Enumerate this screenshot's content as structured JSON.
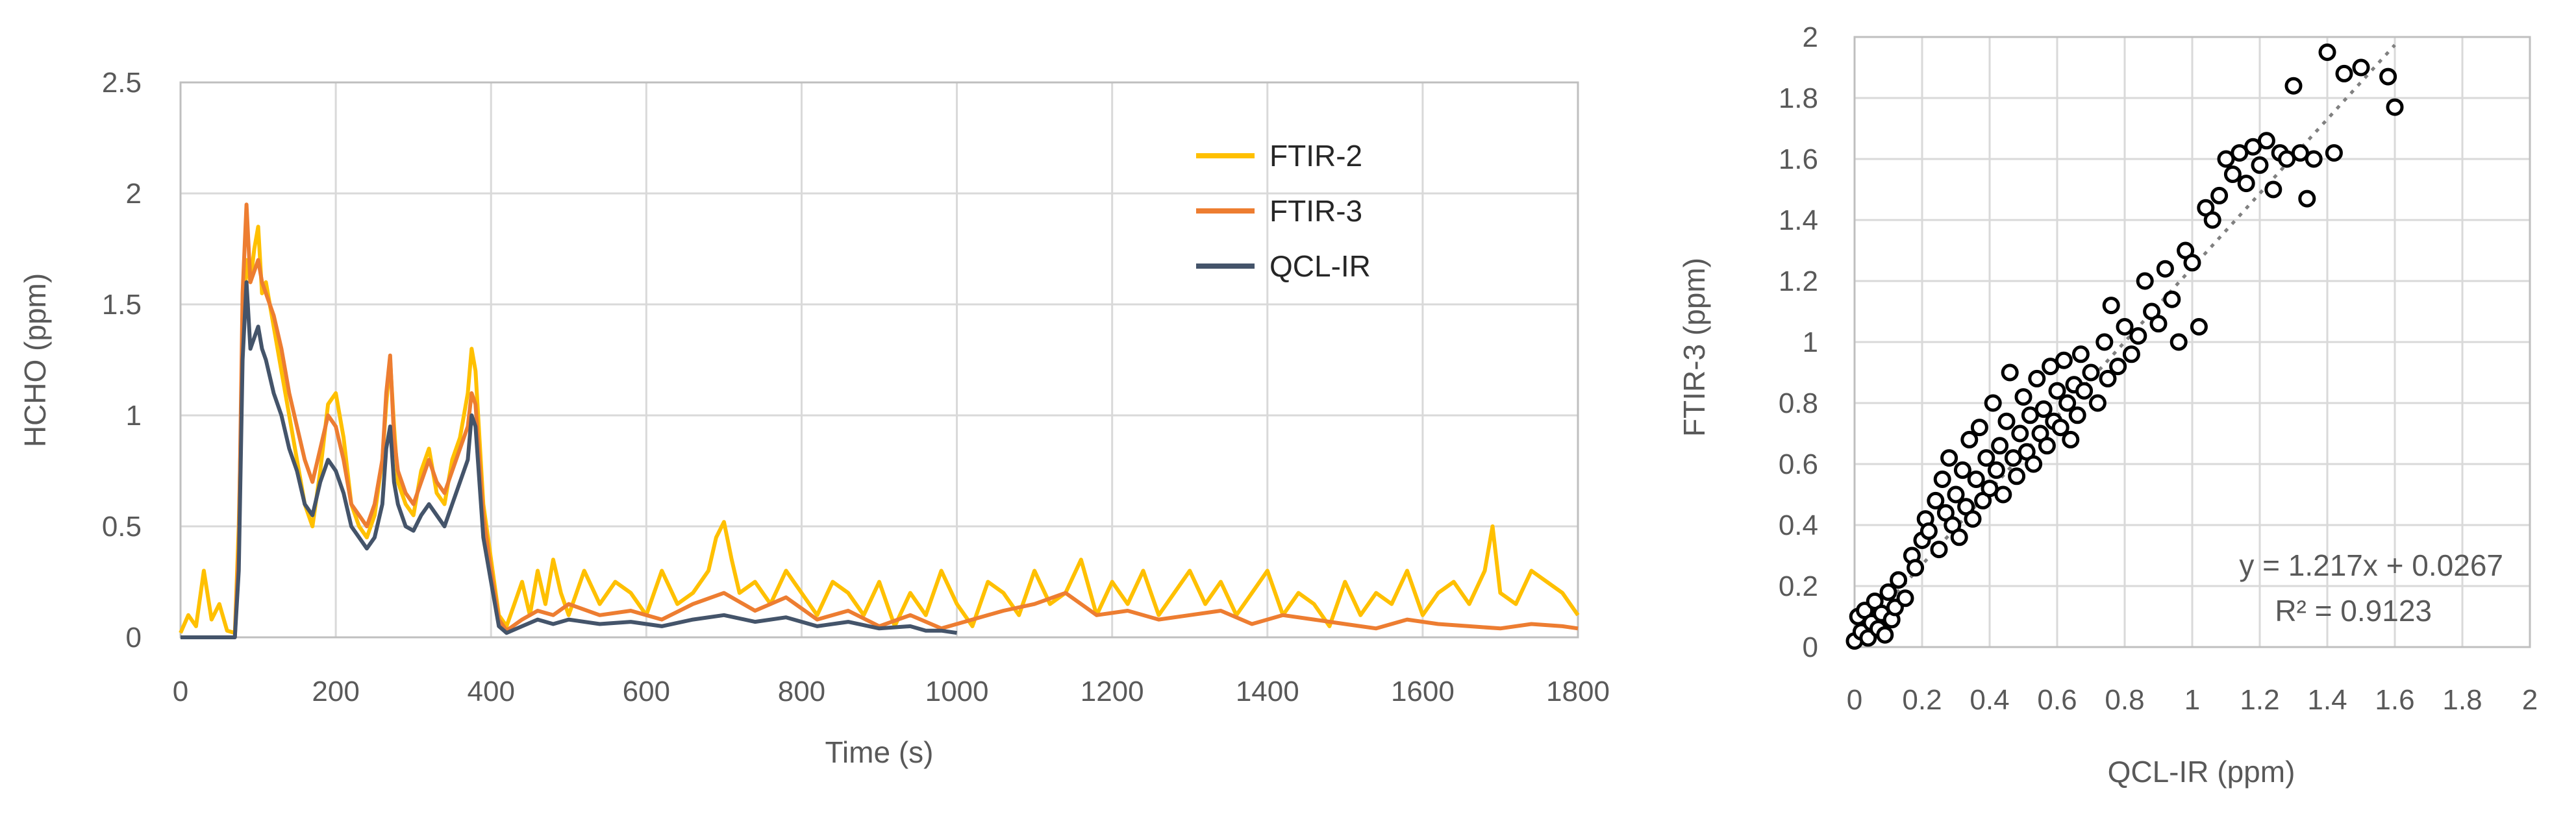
{
  "chart_data": [
    {
      "type": "line",
      "title": "",
      "xlabel": "Time (s)",
      "ylabel": "HCHO (ppm)",
      "xlim": [
        0,
        1800
      ],
      "ylim": [
        0,
        2.5
      ],
      "xticks": [
        0,
        200,
        400,
        600,
        800,
        1000,
        1200,
        1400,
        1600,
        1800
      ],
      "yticks": [
        0,
        0.5,
        1,
        1.5,
        2,
        2.5
      ],
      "ytick_labels": [
        "0",
        "0.5",
        "1",
        "1.5",
        "2",
        "2.5"
      ],
      "grid": true,
      "legend": "top-right",
      "series": [
        {
          "name": "FTIR-2",
          "color": "#FFC000",
          "x": [
            0,
            10,
            20,
            30,
            40,
            50,
            60,
            70,
            75,
            80,
            85,
            90,
            95,
            100,
            105,
            110,
            120,
            130,
            140,
            150,
            160,
            170,
            180,
            190,
            200,
            210,
            220,
            230,
            240,
            250,
            260,
            265,
            270,
            275,
            280,
            290,
            300,
            310,
            320,
            330,
            340,
            350,
            360,
            370,
            375,
            380,
            385,
            390,
            400,
            410,
            420,
            430,
            440,
            450,
            460,
            470,
            480,
            490,
            500,
            520,
            540,
            560,
            580,
            600,
            620,
            640,
            660,
            680,
            690,
            700,
            710,
            720,
            740,
            760,
            780,
            800,
            820,
            840,
            860,
            880,
            900,
            920,
            940,
            960,
            980,
            1000,
            1020,
            1040,
            1060,
            1080,
            1100,
            1120,
            1140,
            1160,
            1180,
            1200,
            1220,
            1240,
            1260,
            1280,
            1300,
            1320,
            1340,
            1360,
            1380,
            1400,
            1420,
            1440,
            1460,
            1480,
            1500,
            1520,
            1540,
            1560,
            1580,
            1600,
            1620,
            1640,
            1660,
            1680,
            1690,
            1700,
            1720,
            1740,
            1760,
            1780,
            1800
          ],
          "values": [
            0.02,
            0.1,
            0.05,
            0.3,
            0.08,
            0.15,
            0.03,
            0.02,
            0.5,
            1.3,
            1.7,
            1.6,
            1.75,
            1.85,
            1.55,
            1.6,
            1.4,
            1.2,
            1.0,
            0.8,
            0.6,
            0.5,
            0.75,
            1.05,
            1.1,
            0.9,
            0.6,
            0.5,
            0.45,
            0.55,
            0.8,
            1.05,
            1.25,
            0.95,
            0.7,
            0.6,
            0.55,
            0.75,
            0.85,
            0.65,
            0.6,
            0.8,
            0.9,
            1.1,
            1.3,
            1.2,
            0.9,
            0.6,
            0.35,
            0.1,
            0.05,
            0.15,
            0.25,
            0.1,
            0.3,
            0.15,
            0.35,
            0.2,
            0.1,
            0.3,
            0.15,
            0.25,
            0.2,
            0.1,
            0.3,
            0.15,
            0.2,
            0.3,
            0.45,
            0.52,
            0.35,
            0.2,
            0.25,
            0.15,
            0.3,
            0.2,
            0.1,
            0.25,
            0.2,
            0.1,
            0.25,
            0.05,
            0.2,
            0.1,
            0.3,
            0.15,
            0.05,
            0.25,
            0.2,
            0.1,
            0.3,
            0.15,
            0.2,
            0.35,
            0.1,
            0.25,
            0.15,
            0.3,
            0.1,
            0.2,
            0.3,
            0.15,
            0.25,
            0.1,
            0.2,
            0.3,
            0.1,
            0.2,
            0.15,
            0.05,
            0.25,
            0.1,
            0.2,
            0.15,
            0.3,
            0.1,
            0.2,
            0.25,
            0.15,
            0.3,
            0.5,
            0.2,
            0.15,
            0.3,
            0.25,
            0.2,
            0.1
          ]
        },
        {
          "name": "FTIR-3",
          "color": "#ED7D31",
          "x": [
            0,
            20,
            40,
            60,
            70,
            75,
            80,
            85,
            90,
            95,
            100,
            105,
            110,
            120,
            130,
            140,
            150,
            160,
            170,
            180,
            190,
            200,
            210,
            220,
            230,
            240,
            250,
            260,
            265,
            270,
            275,
            280,
            290,
            300,
            310,
            320,
            330,
            340,
            350,
            360,
            370,
            375,
            380,
            385,
            390,
            400,
            410,
            420,
            440,
            460,
            480,
            500,
            540,
            580,
            620,
            660,
            700,
            740,
            780,
            820,
            860,
            900,
            940,
            980,
            1020,
            1060,
            1100,
            1140,
            1180,
            1220,
            1260,
            1300,
            1340,
            1380,
            1420,
            1460,
            1500,
            1540,
            1580,
            1620,
            1660,
            1700,
            1740,
            1780,
            1800
          ],
          "values": [
            0,
            0,
            0,
            0,
            0,
            0.4,
            1.55,
            1.95,
            1.6,
            1.65,
            1.7,
            1.6,
            1.55,
            1.45,
            1.3,
            1.1,
            0.95,
            0.8,
            0.7,
            0.85,
            1.0,
            0.95,
            0.8,
            0.6,
            0.55,
            0.5,
            0.6,
            0.8,
            1.1,
            1.27,
            0.9,
            0.75,
            0.65,
            0.6,
            0.7,
            0.8,
            0.7,
            0.65,
            0.75,
            0.85,
            0.95,
            1.1,
            1.05,
            0.8,
            0.55,
            0.3,
            0.08,
            0.03,
            0.08,
            0.12,
            0.1,
            0.15,
            0.1,
            0.12,
            0.08,
            0.15,
            0.2,
            0.12,
            0.18,
            0.08,
            0.12,
            0.05,
            0.1,
            0.04,
            0.08,
            0.12,
            0.15,
            0.2,
            0.1,
            0.12,
            0.08,
            0.1,
            0.12,
            0.06,
            0.1,
            0.08,
            0.06,
            0.04,
            0.08,
            0.06,
            0.05,
            0.04,
            0.06,
            0.05,
            0.04
          ]
        },
        {
          "name": "QCL-IR",
          "color": "#44546A",
          "x": [
            0,
            20,
            40,
            60,
            70,
            75,
            80,
            85,
            90,
            95,
            100,
            105,
            110,
            120,
            130,
            140,
            150,
            160,
            170,
            180,
            190,
            200,
            210,
            220,
            230,
            240,
            250,
            260,
            265,
            270,
            275,
            280,
            290,
            300,
            310,
            320,
            330,
            340,
            350,
            360,
            370,
            375,
            380,
            385,
            390,
            400,
            410,
            420,
            440,
            460,
            480,
            500,
            540,
            580,
            620,
            660,
            700,
            740,
            780,
            820,
            860,
            900,
            940,
            960,
            980,
            1000
          ],
          "values": [
            0,
            0,
            0,
            0,
            0,
            0.3,
            1.25,
            1.6,
            1.3,
            1.35,
            1.4,
            1.3,
            1.25,
            1.1,
            1.0,
            0.85,
            0.75,
            0.6,
            0.55,
            0.7,
            0.8,
            0.75,
            0.65,
            0.5,
            0.45,
            0.4,
            0.45,
            0.6,
            0.85,
            0.95,
            0.7,
            0.6,
            0.5,
            0.48,
            0.55,
            0.6,
            0.55,
            0.5,
            0.6,
            0.7,
            0.8,
            1.0,
            0.95,
            0.7,
            0.45,
            0.25,
            0.05,
            0.02,
            0.05,
            0.08,
            0.06,
            0.08,
            0.06,
            0.07,
            0.05,
            0.08,
            0.1,
            0.07,
            0.09,
            0.05,
            0.07,
            0.04,
            0.05,
            0.03,
            0.03,
            0.02
          ]
        }
      ]
    },
    {
      "type": "scatter",
      "title": "",
      "xlabel": "QCL-IR (ppm)",
      "ylabel": "FTIR-3 (ppm)",
      "xlim": [
        0,
        2
      ],
      "ylim": [
        0,
        2
      ],
      "xticks": [
        0,
        0.2,
        0.4,
        0.6,
        0.8,
        1,
        1.2,
        1.4,
        1.6,
        1.8,
        2
      ],
      "xtick_labels": [
        "0",
        "0.2",
        "0.4",
        "0.6",
        "0.8",
        "1",
        "1.2",
        "1.4",
        "1.6",
        "1.8",
        "2"
      ],
      "yticks": [
        0,
        0.2,
        0.4,
        0.6,
        0.8,
        1,
        1.2,
        1.4,
        1.6,
        1.8,
        2
      ],
      "ytick_labels": [
        "0",
        "0.2",
        "0.4",
        "0.6",
        "0.8",
        "1",
        "1.2",
        "1.4",
        "1.6",
        "1.8",
        "2"
      ],
      "grid": true,
      "trendline": {
        "slope": 1.217,
        "intercept": 0.0267,
        "equation": "y = 1.217x + 0.0267",
        "r2_label": "R² = 0.9123"
      },
      "points": [
        [
          0.0,
          0.02
        ],
        [
          0.01,
          0.1
        ],
        [
          0.02,
          0.05
        ],
        [
          0.03,
          0.12
        ],
        [
          0.04,
          0.03
        ],
        [
          0.05,
          0.08
        ],
        [
          0.06,
          0.15
        ],
        [
          0.07,
          0.06
        ],
        [
          0.08,
          0.11
        ],
        [
          0.09,
          0.04
        ],
        [
          0.1,
          0.18
        ],
        [
          0.11,
          0.09
        ],
        [
          0.12,
          0.13
        ],
        [
          0.13,
          0.22
        ],
        [
          0.15,
          0.16
        ],
        [
          0.17,
          0.3
        ],
        [
          0.18,
          0.26
        ],
        [
          0.2,
          0.35
        ],
        [
          0.21,
          0.42
        ],
        [
          0.22,
          0.38
        ],
        [
          0.24,
          0.48
        ],
        [
          0.25,
          0.32
        ],
        [
          0.26,
          0.55
        ],
        [
          0.27,
          0.44
        ],
        [
          0.28,
          0.62
        ],
        [
          0.29,
          0.4
        ],
        [
          0.3,
          0.5
        ],
        [
          0.31,
          0.36
        ],
        [
          0.32,
          0.58
        ],
        [
          0.33,
          0.46
        ],
        [
          0.34,
          0.68
        ],
        [
          0.35,
          0.42
        ],
        [
          0.36,
          0.55
        ],
        [
          0.37,
          0.72
        ],
        [
          0.38,
          0.48
        ],
        [
          0.39,
          0.62
        ],
        [
          0.4,
          0.52
        ],
        [
          0.41,
          0.8
        ],
        [
          0.42,
          0.58
        ],
        [
          0.43,
          0.66
        ],
        [
          0.44,
          0.5
        ],
        [
          0.45,
          0.74
        ],
        [
          0.46,
          0.9
        ],
        [
          0.47,
          0.62
        ],
        [
          0.48,
          0.56
        ],
        [
          0.49,
          0.7
        ],
        [
          0.5,
          0.82
        ],
        [
          0.51,
          0.64
        ],
        [
          0.52,
          0.76
        ],
        [
          0.53,
          0.6
        ],
        [
          0.54,
          0.88
        ],
        [
          0.55,
          0.7
        ],
        [
          0.56,
          0.78
        ],
        [
          0.57,
          0.66
        ],
        [
          0.58,
          0.92
        ],
        [
          0.59,
          0.74
        ],
        [
          0.6,
          0.84
        ],
        [
          0.61,
          0.72
        ],
        [
          0.62,
          0.94
        ],
        [
          0.63,
          0.8
        ],
        [
          0.64,
          0.68
        ],
        [
          0.65,
          0.86
        ],
        [
          0.66,
          0.76
        ],
        [
          0.67,
          0.96
        ],
        [
          0.68,
          0.84
        ],
        [
          0.7,
          0.9
        ],
        [
          0.72,
          0.8
        ],
        [
          0.74,
          1.0
        ],
        [
          0.75,
          0.88
        ],
        [
          0.76,
          1.12
        ],
        [
          0.78,
          0.92
        ],
        [
          0.8,
          1.05
        ],
        [
          0.82,
          0.96
        ],
        [
          0.84,
          1.02
        ],
        [
          0.86,
          1.2
        ],
        [
          0.88,
          1.1
        ],
        [
          0.9,
          1.06
        ],
        [
          0.92,
          1.24
        ],
        [
          0.94,
          1.14
        ],
        [
          0.96,
          1.0
        ],
        [
          0.98,
          1.3
        ],
        [
          1.0,
          1.26
        ],
        [
          1.02,
          1.05
        ],
        [
          1.04,
          1.44
        ],
        [
          1.06,
          1.4
        ],
        [
          1.08,
          1.48
        ],
        [
          1.1,
          1.6
        ],
        [
          1.12,
          1.55
        ],
        [
          1.14,
          1.62
        ],
        [
          1.16,
          1.52
        ],
        [
          1.18,
          1.64
        ],
        [
          1.2,
          1.58
        ],
        [
          1.22,
          1.66
        ],
        [
          1.24,
          1.5
        ],
        [
          1.26,
          1.62
        ],
        [
          1.28,
          1.6
        ],
        [
          1.3,
          1.84
        ],
        [
          1.32,
          1.62
        ],
        [
          1.34,
          1.47
        ],
        [
          1.36,
          1.6
        ],
        [
          1.4,
          1.95
        ],
        [
          1.42,
          1.62
        ],
        [
          1.45,
          1.88
        ],
        [
          1.5,
          1.9
        ],
        [
          1.58,
          1.87
        ],
        [
          1.6,
          1.77
        ]
      ]
    }
  ]
}
